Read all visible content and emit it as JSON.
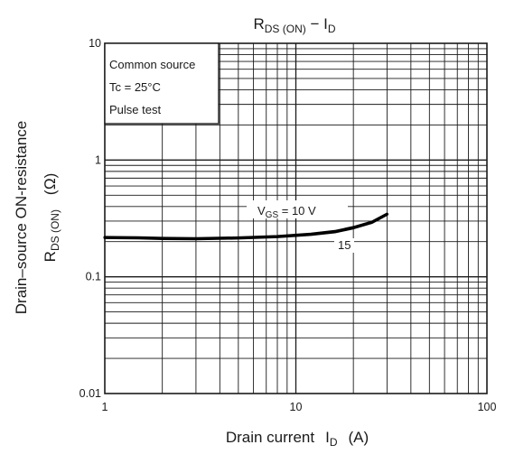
{
  "chart_data": {
    "type": "line",
    "title": {
      "main_a": "R",
      "sub_a": "DS (ON)",
      "dash": " − ",
      "main_b": "I",
      "sub_b": "D"
    },
    "xlabel": {
      "main": "Drain current",
      "var": "I",
      "sub": "D",
      "unit": "(A)"
    },
    "ylabel": {
      "line1": "Drain–source ON-resistance",
      "var": "R",
      "sub": "DS (ON)",
      "unit": "(Ω)"
    },
    "x_scale": "log",
    "y_scale": "log",
    "xlim": [
      1,
      100
    ],
    "ylim": [
      0.01,
      10
    ],
    "x_ticks": [
      {
        "value": 1,
        "label": "1"
      },
      {
        "value": 10,
        "label": "10"
      },
      {
        "value": 100,
        "label": "100"
      }
    ],
    "y_ticks": [
      {
        "value": 10,
        "label": "10"
      },
      {
        "value": 1,
        "label": "1"
      },
      {
        "value": 0.1,
        "label": "0.1"
      },
      {
        "value": 0.01,
        "label": "0.01"
      }
    ],
    "grid": true,
    "conditions": [
      "Common source",
      "Tc = 25°C",
      "Pulse test"
    ],
    "series": [
      {
        "name": "VGS = 10 V",
        "x": [
          1,
          1.5,
          2,
          3,
          5,
          8,
          12,
          16,
          20,
          25,
          30
        ],
        "y": [
          0.218,
          0.217,
          0.214,
          0.213,
          0.216,
          0.222,
          0.233,
          0.245,
          0.265,
          0.295,
          0.345
        ]
      },
      {
        "name": "15",
        "x": [
          1,
          1.5,
          2,
          3,
          5,
          8,
          12,
          16,
          20,
          25,
          30
        ],
        "y": [
          0.216,
          0.215,
          0.212,
          0.211,
          0.214,
          0.22,
          0.23,
          0.242,
          0.262,
          0.292,
          0.342
        ]
      }
    ],
    "annotations": [
      {
        "var": "V",
        "sub": "GS",
        "text": " = 10 V"
      },
      {
        "text": "15"
      }
    ]
  }
}
